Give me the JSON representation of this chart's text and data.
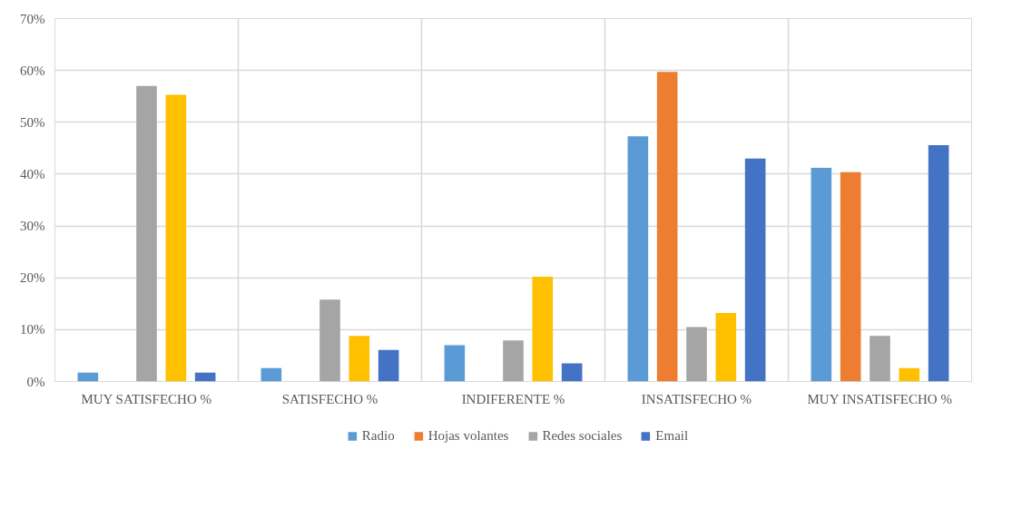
{
  "chart_data": {
    "type": "bar",
    "categories": [
      "MUY SATISFECHO %",
      "SATISFECHO %",
      "INDIFERENTE %",
      "INSATISFECHO %",
      "MUY INSATISFECHO %"
    ],
    "series": [
      {
        "name": "Radio",
        "color": "#5b9bd5",
        "values": [
          1.7,
          2.6,
          7.0,
          47.3,
          41.2
        ]
      },
      {
        "name": "Hojas volantes",
        "color": "#ed7d31",
        "values": [
          0,
          0,
          0,
          59.7,
          40.4
        ]
      },
      {
        "name": "Redes sociales",
        "color": "#a5a5a5",
        "values": [
          57.0,
          15.8,
          7.9,
          10.5,
          8.8
        ]
      },
      {
        "color": "#ffc000",
        "values": [
          55.3,
          8.8,
          20.2,
          13.2,
          2.6
        ]
      },
      {
        "name": "Email",
        "color": "#4472c4",
        "values": [
          1.7,
          6.1,
          3.5,
          43.0,
          45.6
        ]
      }
    ],
    "ylim": [
      0,
      70
    ],
    "yticks": [
      {
        "value": 0,
        "label": "0%"
      },
      {
        "value": 10,
        "label": "10%"
      },
      {
        "value": 20,
        "label": "20%"
      },
      {
        "value": 30,
        "label": "30%"
      },
      {
        "value": 40,
        "label": "40%"
      },
      {
        "value": 50,
        "label": "50%"
      },
      {
        "value": 60,
        "label": "60%"
      },
      {
        "value": 70,
        "label": "70%"
      }
    ],
    "grid": true,
    "legend": "bottom"
  }
}
